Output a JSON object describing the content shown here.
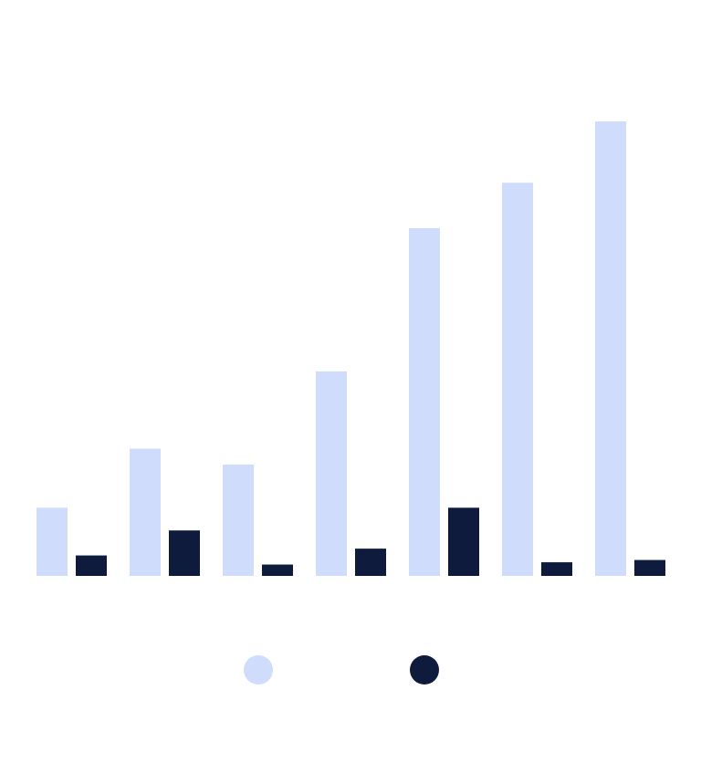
{
  "chart_data": {
    "type": "bar",
    "categories": [
      "",
      "",
      "",
      "",
      "",
      "",
      ""
    ],
    "series": [
      {
        "values": [
          15,
          28,
          24.5,
          45,
          76.5,
          86.5,
          100
        ],
        "color": "#cfdcfb"
      },
      {
        "values": [
          4.5,
          10,
          2.5,
          6,
          15,
          3,
          3.5
        ],
        "color": "#0f1b3d"
      }
    ],
    "title": "",
    "xlabel": "",
    "ylabel": "",
    "ylim": [
      0,
      100
    ],
    "grid": false,
    "legend": {
      "placement": "bottom-center",
      "markers": [
        "circle",
        "circle"
      ]
    }
  }
}
